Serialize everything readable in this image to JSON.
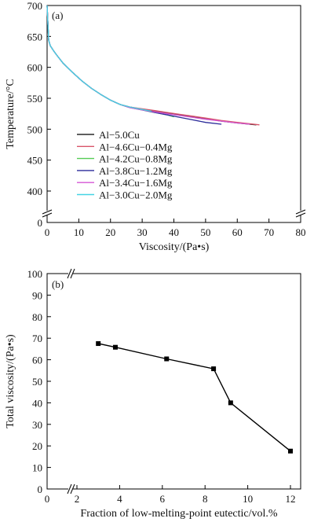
{
  "chart_data": [
    {
      "type": "line",
      "panel_label": "(a)",
      "xlabel": "Viscosity/(Pa•s)",
      "ylabel": "Temperature/°C",
      "xlim": [
        0,
        80
      ],
      "ylim": [
        400,
        700
      ],
      "y_axis_break": true,
      "xticks": [
        0,
        10,
        20,
        30,
        40,
        50,
        60,
        70,
        80
      ],
      "xtick_labels": [
        "0",
        "10",
        "20",
        "30",
        "40",
        "50",
        "60",
        "70",
        "80"
      ],
      "yticks": [
        400,
        450,
        500,
        550,
        600,
        650,
        700
      ],
      "ytick_labels": [
        "400",
        "450",
        "500",
        "550",
        "600",
        "650",
        "700"
      ],
      "y_origin_label": "0",
      "legend": "upper-left-inside",
      "series": [
        {
          "name": "Al−5.0Cu",
          "color": "#2a2a2a",
          "points": [
            [
              0,
              700
            ],
            [
              0.5,
              644
            ],
            [
              1,
              635
            ],
            [
              2,
              627
            ],
            [
              3,
              620
            ],
            [
              5,
              607
            ],
            [
              8,
              592
            ],
            [
              11,
              578
            ],
            [
              14,
              566
            ],
            [
              17,
              556
            ],
            [
              20,
              547
            ],
            [
              23,
              540
            ],
            [
              26,
              536
            ],
            [
              30,
              532
            ],
            [
              34,
              529
            ],
            [
              38,
              526
            ],
            [
              42,
              523
            ],
            [
              46,
              520
            ],
            [
              50,
              517
            ],
            [
              55,
              513
            ],
            [
              60,
              510
            ],
            [
              66,
              507
            ]
          ]
        },
        {
          "name": "Al−4.6Cu−0.4Mg",
          "color": "#d9556a",
          "points": [
            [
              0,
              700
            ],
            [
              0.5,
              644
            ],
            [
              1,
              635
            ],
            [
              2,
              627
            ],
            [
              3,
              620
            ],
            [
              5,
              607
            ],
            [
              8,
              592
            ],
            [
              11,
              578
            ],
            [
              14,
              566
            ],
            [
              17,
              556
            ],
            [
              20,
              547
            ],
            [
              23,
              540
            ],
            [
              26,
              536
            ],
            [
              30,
              533
            ],
            [
              34,
              530
            ],
            [
              38,
              527
            ],
            [
              42,
              524
            ],
            [
              46,
              521
            ],
            [
              50,
              518
            ],
            [
              55,
              514
            ],
            [
              60,
              511
            ],
            [
              67,
              507
            ]
          ]
        },
        {
          "name": "Al−4.2Cu−0.8Mg",
          "color": "#55cc55",
          "points": [
            [
              0,
              700
            ],
            [
              0.5,
              644
            ],
            [
              1,
              635
            ],
            [
              2,
              627
            ],
            [
              3,
              620
            ],
            [
              5,
              607
            ],
            [
              8,
              592
            ],
            [
              11,
              578
            ],
            [
              14,
              566
            ],
            [
              17,
              556
            ],
            [
              20,
              547
            ],
            [
              23,
              540
            ],
            [
              26,
              535
            ],
            [
              30,
              531
            ],
            [
              34,
              527
            ],
            [
              38,
              523
            ],
            [
              40,
              520
            ]
          ]
        },
        {
          "name": "Al−3.8Cu−1.2Mg",
          "color": "#2b2b9a",
          "points": [
            [
              0,
              700
            ],
            [
              0.5,
              644
            ],
            [
              1,
              635
            ],
            [
              2,
              627
            ],
            [
              3,
              620
            ],
            [
              5,
              607
            ],
            [
              8,
              592
            ],
            [
              11,
              578
            ],
            [
              14,
              566
            ],
            [
              17,
              556
            ],
            [
              20,
              547
            ],
            [
              23,
              540
            ],
            [
              26,
              535
            ],
            [
              30,
              531
            ],
            [
              34,
              527
            ],
            [
              38,
              523
            ],
            [
              42,
              519
            ],
            [
              46,
              515
            ],
            [
              50,
              511
            ],
            [
              55,
              508
            ]
          ]
        },
        {
          "name": "Al−3.4Cu−1.6Mg",
          "color": "#d455d4",
          "points": [
            [
              0,
              700
            ],
            [
              0.5,
              644
            ],
            [
              1,
              635
            ],
            [
              2,
              627
            ],
            [
              3,
              620
            ],
            [
              5,
              607
            ],
            [
              8,
              592
            ],
            [
              11,
              578
            ],
            [
              14,
              566
            ],
            [
              17,
              556
            ],
            [
              20,
              547
            ],
            [
              23,
              540
            ],
            [
              26,
              535
            ],
            [
              30,
              531
            ],
            [
              34,
              528
            ],
            [
              38,
              525
            ],
            [
              42,
              522
            ],
            [
              46,
              519
            ],
            [
              50,
              516
            ],
            [
              55,
              513
            ],
            [
              60,
              510
            ],
            [
              64,
              508
            ]
          ]
        },
        {
          "name": "Al−3.0Cu−2.0Mg",
          "color": "#44d4e4",
          "points": [
            [
              0,
              700
            ],
            [
              0.5,
              644
            ],
            [
              1,
              635
            ],
            [
              2,
              627
            ],
            [
              3,
              620
            ],
            [
              5,
              607
            ],
            [
              8,
              592
            ],
            [
              11,
              578
            ],
            [
              14,
              566
            ],
            [
              17,
              556
            ],
            [
              20,
              547
            ],
            [
              23,
              540
            ],
            [
              26,
              536
            ],
            [
              30,
              532
            ],
            [
              33,
              529
            ]
          ]
        }
      ]
    },
    {
      "type": "line",
      "panel_label": "(b)",
      "xlabel": "Fraction of low-melting-point eutectic/vol.%",
      "ylabel": "Total viscosity/(Pa•s)",
      "xlim": [
        0,
        13
      ],
      "ylim": [
        0,
        100
      ],
      "x_axis_break": true,
      "y_axis_break": true,
      "xticks": [
        0,
        2,
        4,
        6,
        8,
        10,
        12
      ],
      "xtick_labels": [
        "0",
        "2",
        "4",
        "6",
        "8",
        "10",
        "12"
      ],
      "yticks": [
        0,
        10,
        20,
        30,
        40,
        50,
        60,
        70,
        80,
        90,
        100
      ],
      "ytick_labels": [
        "0",
        "10",
        "20",
        "30",
        "40",
        "50",
        "60",
        "70",
        "80",
        "90",
        "100"
      ],
      "marker": "square",
      "series": [
        {
          "color": "#000000",
          "points": [
            [
              3.0,
              67.5
            ],
            [
              3.8,
              65.8
            ],
            [
              6.2,
              60.4
            ],
            [
              8.4,
              55.8
            ],
            [
              9.2,
              40.0
            ],
            [
              12.0,
              17.6
            ]
          ]
        }
      ]
    }
  ]
}
